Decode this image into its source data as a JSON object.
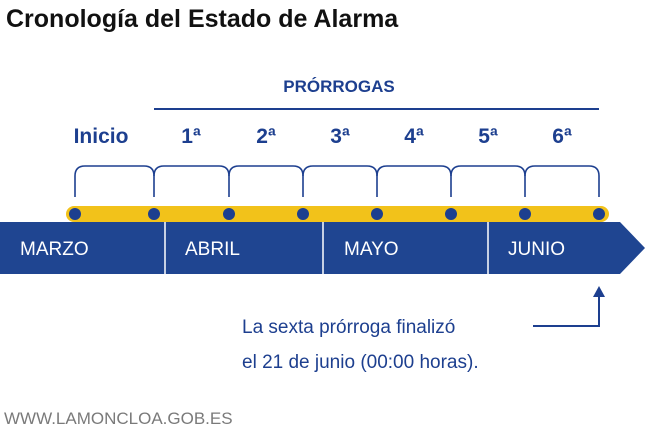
{
  "title": "Cronología del Estado de Alarma",
  "prorrogas_header": "PRÓRROGAS",
  "stages": [
    "Inicio",
    "1ª",
    "2ª",
    "3ª",
    "4ª",
    "5ª",
    "6ª"
  ],
  "months": [
    "MARZO",
    "ABRIL",
    "MAYO",
    "JUNIO"
  ],
  "note_lines": [
    "La sexta prórroga finalizó",
    "el 21 de junio (00:00 horas)."
  ],
  "source": "WWW.LAMONCLOA.GOB.ES",
  "colors": {
    "navy": "#1d3f8f",
    "bar": "#1f4591",
    "yellow": "#f2c21a",
    "gray": "#7a7a7a"
  }
}
